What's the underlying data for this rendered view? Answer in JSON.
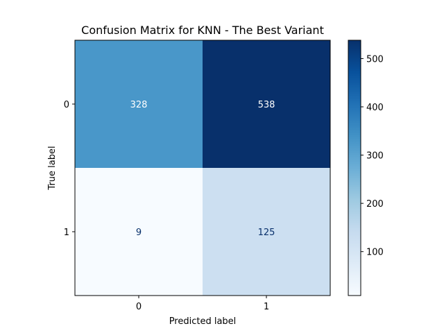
{
  "chart_data": {
    "type": "heatmap",
    "title": "Confusion Matrix for KNN - The Best Variant",
    "xlabel": "Predicted label",
    "ylabel": "True label",
    "x_categories": [
      "0",
      "1"
    ],
    "y_categories": [
      "0",
      "1"
    ],
    "values": [
      [
        328,
        538
      ],
      [
        9,
        125
      ]
    ],
    "colormap": "Blues",
    "colorbar": {
      "range": [
        9,
        538
      ],
      "ticks": [
        "100",
        "200",
        "300",
        "400",
        "500"
      ]
    },
    "colors": {
      "low": "#f7fbff",
      "high": "#08306b",
      "text_light": "#ffffff",
      "text_dark": "#08306b"
    }
  }
}
